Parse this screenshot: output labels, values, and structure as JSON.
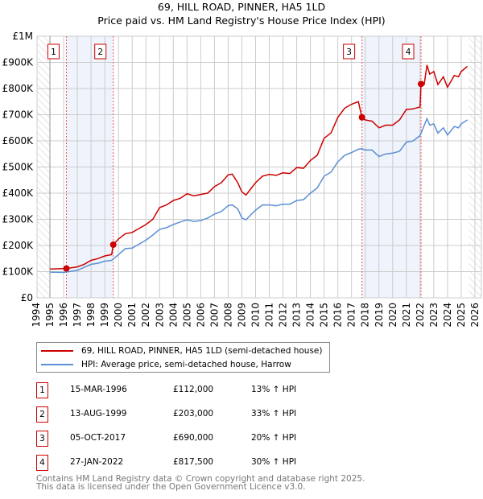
{
  "chart_data": {
    "type": "line",
    "title": "69, HILL ROAD, PINNER, HA5 1LD",
    "subtitle": "Price paid vs. HM Land Registry's House Price Index (HPI)",
    "xlim": [
      1994,
      2026
    ],
    "ylim": [
      0,
      1000000
    ],
    "x_ticks": [
      "1994",
      "1995",
      "1996",
      "1997",
      "1998",
      "1999",
      "2000",
      "2001",
      "2002",
      "2003",
      "2004",
      "2005",
      "2006",
      "2007",
      "2008",
      "2009",
      "2010",
      "2011",
      "2012",
      "2013",
      "2014",
      "2015",
      "2016",
      "2017",
      "2018",
      "2019",
      "2020",
      "2021",
      "2022",
      "2023",
      "2024",
      "2025",
      "2026"
    ],
    "y_ticks": [
      {
        "v": 0,
        "l": "£0"
      },
      {
        "v": 100000,
        "l": "£100K"
      },
      {
        "v": 200000,
        "l": "£200K"
      },
      {
        "v": 300000,
        "l": "£300K"
      },
      {
        "v": 400000,
        "l": "£400K"
      },
      {
        "v": 500000,
        "l": "£500K"
      },
      {
        "v": 600000,
        "l": "£600K"
      },
      {
        "v": 700000,
        "l": "£700K"
      },
      {
        "v": 800000,
        "l": "£800K"
      },
      {
        "v": 900000,
        "l": "£900K"
      },
      {
        "v": 1000000,
        "l": "£1M"
      }
    ],
    "grid": true,
    "legend_placement": "below",
    "shaded_ranges": [
      [
        1996.2,
        1999.62
      ],
      [
        2017.76,
        2022.07
      ]
    ],
    "hatched_ranges": [
      [
        1994,
        1995
      ],
      [
        2025.55,
        2026.5
      ]
    ],
    "series": [
      {
        "name": "69, HILL ROAD, PINNER, HA5 1LD (semi-detached house)",
        "color": "#cc0000",
        "x": [
          1995,
          1996.2,
          1997,
          1997.5,
          1998,
          1998.5,
          1999,
          1999.5,
          1999.62,
          2000,
          2000.5,
          2001,
          2001.5,
          2002,
          2002.5,
          2003,
          2003.5,
          2004,
          2004.5,
          2005,
          2005.5,
          2006,
          2006.5,
          2007,
          2007.5,
          2008,
          2008.3,
          2008.7,
          2009,
          2009.3,
          2009.7,
          2010,
          2010.5,
          2011,
          2011.5,
          2012,
          2012.5,
          2013,
          2013.5,
          2014,
          2014.5,
          2015,
          2015.5,
          2016,
          2016.5,
          2017,
          2017.5,
          2017.76,
          2018,
          2018.5,
          2019,
          2019.5,
          2020,
          2020.5,
          2021,
          2021.5,
          2022.0,
          2022.07,
          2022.3,
          2022.5,
          2022.7,
          2023,
          2023.3,
          2023.7,
          2024,
          2024.5,
          2024.8,
          2025,
          2025.45
        ],
        "y": [
          110000,
          112000,
          118000,
          128000,
          143000,
          150000,
          160000,
          165000,
          203000,
          225000,
          245000,
          250000,
          265000,
          280000,
          300000,
          345000,
          355000,
          372000,
          380000,
          398000,
          390000,
          395000,
          400000,
          425000,
          440000,
          470000,
          473000,
          440000,
          405000,
          393000,
          420000,
          440000,
          465000,
          472000,
          468000,
          478000,
          475000,
          498000,
          495000,
          525000,
          545000,
          610000,
          630000,
          690000,
          725000,
          740000,
          750000,
          690000,
          680000,
          675000,
          650000,
          660000,
          660000,
          680000,
          720000,
          722000,
          730000,
          817500,
          815000,
          890000,
          855000,
          865000,
          815000,
          845000,
          805000,
          850000,
          845000,
          865000,
          885000
        ]
      },
      {
        "name": "HPI: Average price, semi-detached house, Harrow",
        "color": "#5b8fd4",
        "x": [
          1995,
          1996,
          1997,
          1998,
          1998.5,
          1999,
          1999.5,
          2000,
          2000.5,
          2001,
          2001.5,
          2002,
          2002.5,
          2003,
          2003.5,
          2004,
          2004.5,
          2005,
          2005.5,
          2006,
          2006.5,
          2007,
          2007.5,
          2008,
          2008.3,
          2008.7,
          2009,
          2009.3,
          2009.7,
          2010,
          2010.5,
          2011,
          2011.5,
          2012,
          2012.5,
          2013,
          2013.5,
          2014,
          2014.5,
          2015,
          2015.5,
          2016,
          2016.5,
          2017,
          2017.5,
          2017.76,
          2018,
          2018.5,
          2019,
          2019.5,
          2020,
          2020.5,
          2021,
          2021.5,
          2022,
          2022.5,
          2022.7,
          2023,
          2023.3,
          2023.7,
          2024,
          2024.5,
          2024.8,
          2025,
          2025.45
        ],
        "y": [
          98000,
          97000,
          105000,
          128000,
          132000,
          140000,
          143000,
          165000,
          188000,
          190000,
          205000,
          220000,
          240000,
          262000,
          268000,
          280000,
          290000,
          298000,
          292000,
          295000,
          305000,
          320000,
          330000,
          352000,
          355000,
          340000,
          305000,
          298000,
          320000,
          335000,
          355000,
          355000,
          352000,
          358000,
          358000,
          372000,
          375000,
          400000,
          420000,
          465000,
          480000,
          520000,
          545000,
          555000,
          568000,
          570000,
          565000,
          565000,
          540000,
          550000,
          553000,
          560000,
          595000,
          600000,
          620000,
          685000,
          660000,
          665000,
          630000,
          650000,
          622000,
          655000,
          650000,
          665000,
          680000
        ]
      }
    ],
    "sales": [
      {
        "id": "1",
        "x": 1996.2,
        "y": 112000
      },
      {
        "id": "2",
        "x": 1999.62,
        "y": 203000
      },
      {
        "id": "3",
        "x": 2017.76,
        "y": 690000
      },
      {
        "id": "4",
        "x": 2022.07,
        "y": 817500
      }
    ]
  },
  "legend": {
    "items": [
      {
        "label": "69, HILL ROAD, PINNER, HA5 1LD (semi-detached house)",
        "color": "#cc0000"
      },
      {
        "label": "HPI: Average price, semi-detached house, Harrow",
        "color": "#5b8fd4"
      }
    ]
  },
  "transactions": [
    {
      "num": "1",
      "date": "15-MAR-1996",
      "price": "£112,000",
      "hpi": "13% ↑ HPI"
    },
    {
      "num": "2",
      "date": "13-AUG-1999",
      "price": "£203,000",
      "hpi": "33% ↑ HPI"
    },
    {
      "num": "3",
      "date": "05-OCT-2017",
      "price": "£690,000",
      "hpi": "20% ↑ HPI"
    },
    {
      "num": "4",
      "date": "27-JAN-2022",
      "price": "£817,500",
      "hpi": "30% ↑ HPI"
    }
  ],
  "footer": {
    "line1": "Contains HM Land Registry data © Crown copyright and database right 2025.",
    "line2": "This data is licensed under the Open Government Licence v3.0."
  }
}
